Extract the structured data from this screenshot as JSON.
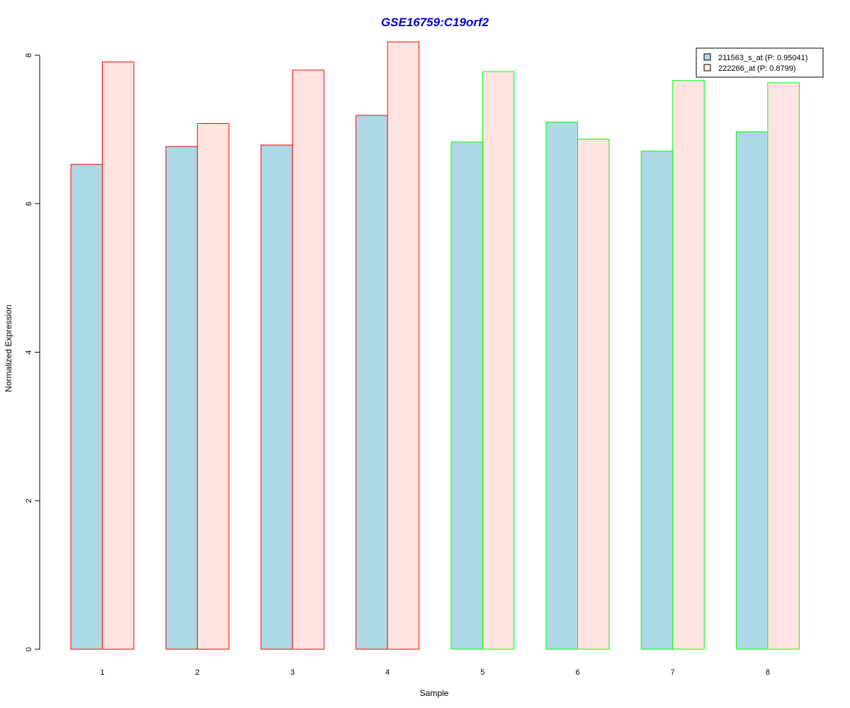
{
  "chart_data": {
    "type": "bar",
    "title": "GSE16759:C19orf2",
    "title_color": "#0000CC",
    "xlabel": "Sample",
    "ylabel": "Normalized Expression",
    "categories": [
      "1",
      "2",
      "3",
      "4",
      "5",
      "6",
      "7",
      "8"
    ],
    "ylim": [
      0,
      8
    ],
    "y_ticks": [
      0,
      2,
      4,
      6,
      8
    ],
    "grid": false,
    "legend_position": "top-right",
    "series": [
      {
        "name": "211563_s_at (P: 0.95041)",
        "fill": "#ADD8E6",
        "values": [
          6.53,
          6.77,
          6.79,
          7.19,
          6.83,
          7.1,
          6.71,
          6.97
        ]
      },
      {
        "name": "222266_at (P: 0.8799)",
        "fill": "#FFE4E1",
        "values": [
          7.91,
          7.08,
          7.8,
          8.18,
          7.78,
          6.87,
          7.66,
          7.63
        ]
      }
    ],
    "group_border_colors": [
      "#FF0000",
      "#FF0000",
      "#FF0000",
      "#FF0000",
      "#00FF00",
      "#00FF00",
      "#00FF00",
      "#00FF00"
    ]
  }
}
